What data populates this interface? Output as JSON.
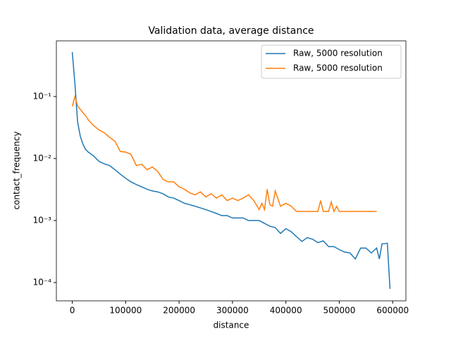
{
  "chart_data": {
    "type": "line",
    "title": "Validation data, average distance",
    "x_label": "distance",
    "y_label": "contact_frequency",
    "y_scale": "log",
    "legend": "upper right",
    "xlim": [
      -29750,
      624750
    ],
    "ylim": [
      5.07e-05,
      0.79
    ],
    "xticks": [
      0,
      100000,
      200000,
      300000,
      400000,
      500000,
      600000
    ],
    "yticks": [
      {
        "value": 0.0001,
        "label": "10⁻⁴"
      },
      {
        "value": 0.001,
        "label": "10⁻³"
      },
      {
        "value": 0.01,
        "label": "10⁻²"
      },
      {
        "value": 0.1,
        "label": "10⁻¹"
      }
    ],
    "series": [
      {
        "name": "Raw, 5000 resolution",
        "color": "#1f77b4",
        "x": [
          0,
          5000,
          10000,
          15000,
          20000,
          25000,
          30000,
          40000,
          50000,
          60000,
          70000,
          80000,
          90000,
          100000,
          110000,
          120000,
          130000,
          140000,
          150000,
          160000,
          170000,
          180000,
          190000,
          200000,
          210000,
          220000,
          230000,
          240000,
          250000,
          260000,
          270000,
          280000,
          290000,
          300000,
          310000,
          320000,
          330000,
          340000,
          350000,
          360000,
          370000,
          380000,
          390000,
          400000,
          410000,
          420000,
          430000,
          440000,
          450000,
          460000,
          470000,
          480000,
          490000,
          500000,
          510000,
          520000,
          530000,
          540000,
          550000,
          560000,
          570000,
          575000,
          580000,
          590000,
          595000
        ],
        "values": [
          0.52,
          0.16,
          0.039,
          0.023,
          0.017,
          0.014,
          0.0127,
          0.011,
          0.009,
          0.0082,
          0.0077,
          0.0066,
          0.0056,
          0.0048,
          0.0042,
          0.0038,
          0.0035,
          0.0032,
          0.003,
          0.0029,
          0.0027,
          0.0024,
          0.0023,
          0.0021,
          0.0019,
          0.0018,
          0.0017,
          0.0016,
          0.0015,
          0.0014,
          0.0013,
          0.0012,
          0.0012,
          0.0011,
          0.0011,
          0.0011,
          0.001,
          0.001,
          0.001,
          0.0009,
          0.00081,
          0.00077,
          0.00062,
          0.00074,
          0.00066,
          0.00055,
          0.00046,
          0.00053,
          0.0005,
          0.00044,
          0.00047,
          0.00038,
          0.00038,
          0.00034,
          0.00031,
          0.0003,
          0.00024,
          0.00036,
          0.00036,
          0.0003,
          0.00036,
          0.00024,
          0.00042,
          0.00043,
          7.9e-05
        ]
      },
      {
        "name": "Raw, 5000 resolution",
        "color": "#ff7f0e",
        "x": [
          0,
          5000,
          10000,
          15000,
          20000,
          25000,
          30000,
          40000,
          50000,
          60000,
          70000,
          80000,
          90000,
          100000,
          110000,
          120000,
          130000,
          140000,
          150000,
          160000,
          170000,
          180000,
          190000,
          200000,
          210000,
          220000,
          230000,
          240000,
          250000,
          260000,
          270000,
          280000,
          290000,
          300000,
          310000,
          320000,
          330000,
          340000,
          350000,
          355000,
          360000,
          365000,
          370000,
          375000,
          380000,
          390000,
          400000,
          410000,
          420000,
          460000,
          465000,
          470000,
          480000,
          485000,
          490000,
          495000,
          500000,
          570000
        ],
        "values": [
          0.069,
          0.1,
          0.071,
          0.062,
          0.055,
          0.049,
          0.042,
          0.034,
          0.029,
          0.026,
          0.022,
          0.019,
          0.013,
          0.0127,
          0.0117,
          0.0077,
          0.0081,
          0.0066,
          0.0073,
          0.0062,
          0.0046,
          0.0042,
          0.0042,
          0.0035,
          0.0032,
          0.0028,
          0.0026,
          0.0029,
          0.0024,
          0.0027,
          0.0023,
          0.0026,
          0.0021,
          0.0023,
          0.0021,
          0.0023,
          0.0026,
          0.0021,
          0.0015,
          0.0019,
          0.0015,
          0.0032,
          0.0018,
          0.0017,
          0.003,
          0.0017,
          0.0019,
          0.0017,
          0.0014,
          0.0014,
          0.0021,
          0.0014,
          0.0014,
          0.002,
          0.0014,
          0.0017,
          0.0014,
          0.0014
        ]
      }
    ]
  }
}
